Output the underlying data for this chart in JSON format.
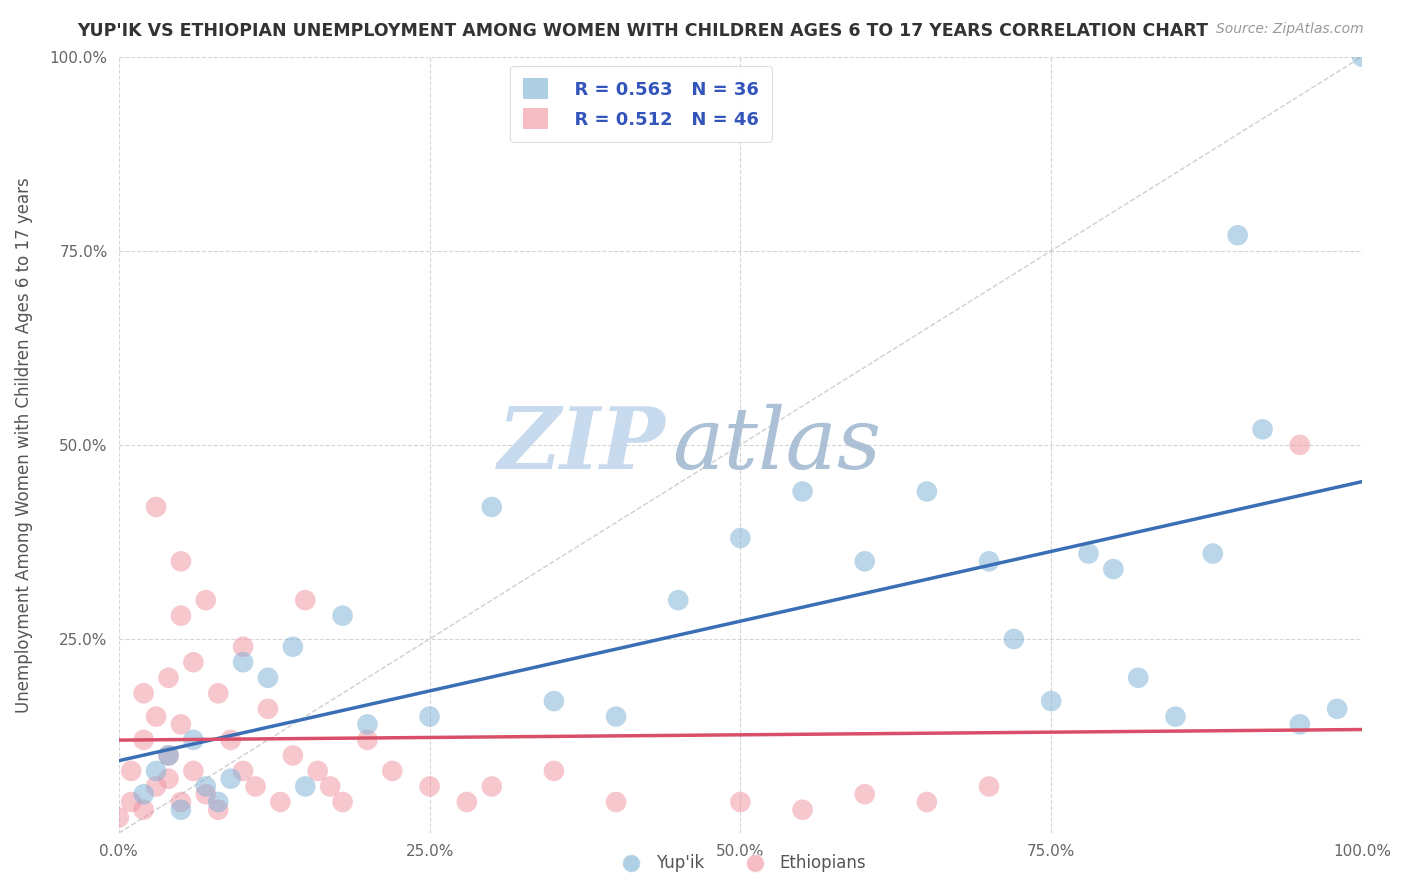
{
  "title": "YUP'IK VS ETHIOPIAN UNEMPLOYMENT AMONG WOMEN WITH CHILDREN AGES 6 TO 17 YEARS CORRELATION CHART",
  "source": "Source: ZipAtlas.com",
  "ylabel": "Unemployment Among Women with Children Ages 6 to 17 years",
  "xlim": [
    0,
    1.0
  ],
  "ylim": [
    0,
    1.0
  ],
  "xticks": [
    0.0,
    0.25,
    0.5,
    0.75,
    1.0
  ],
  "yticks": [
    0.0,
    0.25,
    0.5,
    0.75,
    1.0
  ],
  "xticklabels": [
    "0.0%",
    "25.0%",
    "50.0%",
    "75.0%",
    "100.0%"
  ],
  "yticklabels": [
    "",
    "25.0%",
    "50.0%",
    "75.0%",
    "100.0%"
  ],
  "yupik_R": 0.563,
  "yupik_N": 36,
  "ethiopian_R": 0.512,
  "ethiopian_N": 46,
  "yupik_label": "Yup'ik",
  "ethiopian_label": "Ethiopians",
  "yupik_color": "#7bafd4",
  "ethiopian_color": "#f0909e",
  "yupik_line_color": "#3a6fb5",
  "ethiopian_line_color": "#d94f6a",
  "legend_text_color": "#3355bb",
  "watermark_zip_color": "#c5d8ec",
  "watermark_atlas_color": "#a8bed4",
  "background_color": "#ffffff",
  "grid_color": "#cccccc",
  "yupik_scatter": [
    [
      0.02,
      0.05
    ],
    [
      0.03,
      0.08
    ],
    [
      0.04,
      0.1
    ],
    [
      0.05,
      0.03
    ],
    [
      0.06,
      0.12
    ],
    [
      0.07,
      0.06
    ],
    [
      0.08,
      0.04
    ],
    [
      0.09,
      0.07
    ],
    [
      0.1,
      0.22
    ],
    [
      0.12,
      0.2
    ],
    [
      0.14,
      0.24
    ],
    [
      0.15,
      0.06
    ],
    [
      0.18,
      0.28
    ],
    [
      0.2,
      0.14
    ],
    [
      0.25,
      0.15
    ],
    [
      0.3,
      0.42
    ],
    [
      0.35,
      0.17
    ],
    [
      0.4,
      0.15
    ],
    [
      0.45,
      0.3
    ],
    [
      0.5,
      0.38
    ],
    [
      0.55,
      0.44
    ],
    [
      0.6,
      0.35
    ],
    [
      0.65,
      0.44
    ],
    [
      0.7,
      0.35
    ],
    [
      0.72,
      0.25
    ],
    [
      0.75,
      0.17
    ],
    [
      0.78,
      0.36
    ],
    [
      0.8,
      0.34
    ],
    [
      0.82,
      0.2
    ],
    [
      0.85,
      0.15
    ],
    [
      0.88,
      0.36
    ],
    [
      0.9,
      0.77
    ],
    [
      0.92,
      0.52
    ],
    [
      0.95,
      0.14
    ],
    [
      0.98,
      0.16
    ],
    [
      1.0,
      1.0
    ]
  ],
  "ethiopian_scatter": [
    [
      0.0,
      0.02
    ],
    [
      0.01,
      0.04
    ],
    [
      0.01,
      0.08
    ],
    [
      0.02,
      0.03
    ],
    [
      0.02,
      0.12
    ],
    [
      0.02,
      0.18
    ],
    [
      0.03,
      0.06
    ],
    [
      0.03,
      0.15
    ],
    [
      0.03,
      0.42
    ],
    [
      0.04,
      0.07
    ],
    [
      0.04,
      0.1
    ],
    [
      0.04,
      0.2
    ],
    [
      0.05,
      0.04
    ],
    [
      0.05,
      0.14
    ],
    [
      0.05,
      0.28
    ],
    [
      0.05,
      0.35
    ],
    [
      0.06,
      0.08
    ],
    [
      0.06,
      0.22
    ],
    [
      0.07,
      0.05
    ],
    [
      0.07,
      0.3
    ],
    [
      0.08,
      0.03
    ],
    [
      0.08,
      0.18
    ],
    [
      0.09,
      0.12
    ],
    [
      0.1,
      0.08
    ],
    [
      0.1,
      0.24
    ],
    [
      0.11,
      0.06
    ],
    [
      0.12,
      0.16
    ],
    [
      0.13,
      0.04
    ],
    [
      0.14,
      0.1
    ],
    [
      0.15,
      0.3
    ],
    [
      0.16,
      0.08
    ],
    [
      0.17,
      0.06
    ],
    [
      0.18,
      0.04
    ],
    [
      0.2,
      0.12
    ],
    [
      0.22,
      0.08
    ],
    [
      0.25,
      0.06
    ],
    [
      0.28,
      0.04
    ],
    [
      0.3,
      0.06
    ],
    [
      0.35,
      0.08
    ],
    [
      0.4,
      0.04
    ],
    [
      0.5,
      0.04
    ],
    [
      0.55,
      0.03
    ],
    [
      0.6,
      0.05
    ],
    [
      0.65,
      0.04
    ],
    [
      0.7,
      0.06
    ],
    [
      0.95,
      0.5
    ]
  ]
}
